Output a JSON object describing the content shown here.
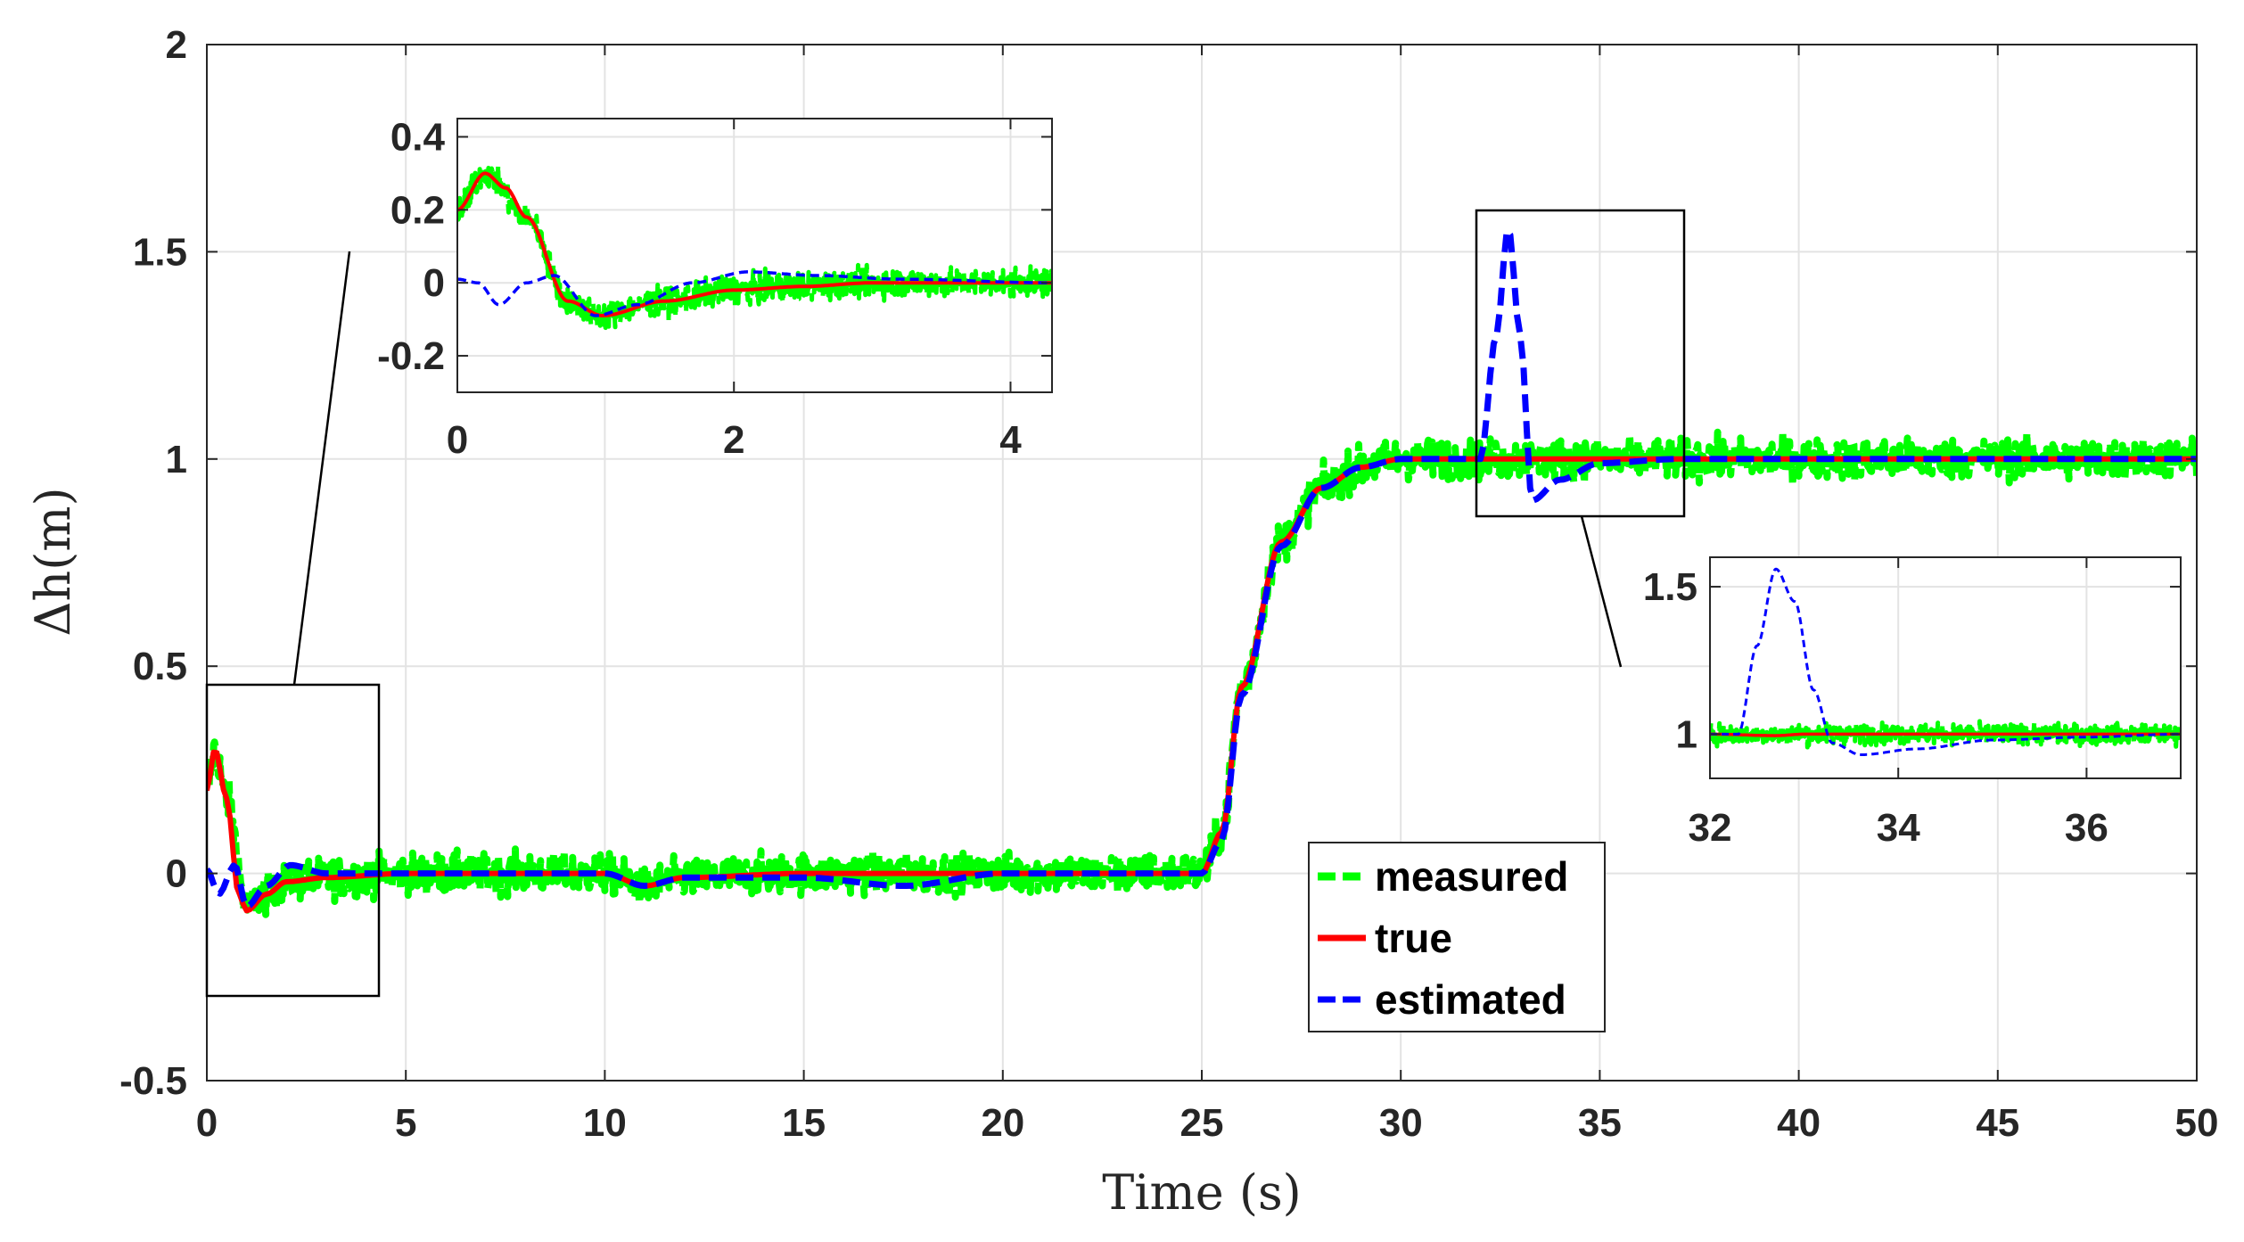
{
  "chart_data": [
    {
      "id": "main",
      "type": "line",
      "xlabel": "Time (s)",
      "ylabel": "Δh(m)",
      "xlim": [
        0,
        50
      ],
      "ylim": [
        -0.5,
        2
      ],
      "xticks": [
        0,
        5,
        10,
        15,
        20,
        25,
        30,
        35,
        40,
        45,
        50
      ],
      "xtick_labels": [
        "0",
        "5",
        "10",
        "15",
        "20",
        "25",
        "30",
        "35",
        "40",
        "45",
        "50"
      ],
      "yticks": [
        -0.5,
        0,
        0.5,
        1,
        1.5,
        2
      ],
      "ytick_labels": [
        "-0.5",
        "0",
        "0.5",
        "1",
        "1.5",
        "2"
      ],
      "grid": true,
      "legend": {
        "placement": "bottom-center-right",
        "entries": [
          "measured",
          "true",
          "estimated"
        ]
      },
      "series": [
        {
          "name": "measured",
          "color": "#00ff00",
          "style": "dashed-noisy",
          "noise_amplitude": 0.1,
          "x": [
            0,
            0.2,
            0.5,
            1.0,
            1.5,
            2,
            3,
            5,
            10,
            11,
            12,
            15,
            20,
            25,
            25.5,
            26,
            27,
            28,
            29,
            30,
            35,
            40,
            45,
            50
          ],
          "values": [
            0.2,
            0.3,
            0.18,
            -0.08,
            -0.05,
            -0.02,
            -0.01,
            0,
            0,
            -0.03,
            -0.01,
            0,
            0,
            0,
            0.1,
            0.45,
            0.8,
            0.93,
            0.98,
            1.0,
            1.0,
            1.0,
            1.0,
            1.0
          ]
        },
        {
          "name": "true",
          "color": "#ff0000",
          "style": "solid",
          "x": [
            0,
            0.2,
            0.5,
            0.8,
            1.0,
            1.5,
            2,
            3,
            5,
            10,
            11,
            12,
            15,
            20,
            25,
            25.5,
            26,
            27,
            28,
            29,
            30,
            35,
            40,
            45,
            50
          ],
          "values": [
            0.2,
            0.3,
            0.18,
            -0.05,
            -0.09,
            -0.05,
            -0.02,
            -0.01,
            0,
            0,
            -0.03,
            -0.01,
            0,
            0,
            0,
            0.1,
            0.45,
            0.8,
            0.93,
            0.98,
            1.0,
            1.0,
            1.0,
            1.0,
            1.0
          ]
        },
        {
          "name": "estimated",
          "color": "#0000ff",
          "style": "dashed",
          "x": [
            0,
            0.3,
            0.7,
            1.0,
            1.5,
            2.1,
            3,
            5,
            10,
            11,
            12,
            15,
            17.5,
            20,
            25,
            25.5,
            26,
            27,
            28,
            29,
            30,
            32,
            32.4,
            32.7,
            33.0,
            33.3,
            34,
            35,
            37,
            40,
            45,
            50
          ],
          "values": [
            0.01,
            -0.05,
            0.02,
            -0.08,
            -0.03,
            0.02,
            0.0,
            0,
            0,
            -0.03,
            -0.01,
            -0.01,
            -0.03,
            0,
            0,
            0.08,
            0.43,
            0.79,
            0.93,
            0.98,
            1.0,
            1.0,
            1.3,
            1.56,
            1.3,
            0.9,
            0.95,
            0.99,
            1.0,
            1.0,
            1.0,
            1.0
          ]
        }
      ],
      "annotations": [
        "zoom box 1: x 0–4.3, y -0.3–0.45",
        "zoom box 2: x 32–37, y 0.85–1.6"
      ]
    },
    {
      "id": "inset1",
      "type": "line",
      "xlim": [
        0,
        4.3
      ],
      "ylim": [
        -0.3,
        0.45
      ],
      "xticks": [
        0,
        2,
        4
      ],
      "xtick_labels": [
        "0",
        "2",
        "4"
      ],
      "yticks": [
        -0.2,
        0,
        0.2,
        0.4
      ],
      "ytick_labels": [
        "-0.2",
        "0",
        "0.2",
        "0.4"
      ],
      "grid": true,
      "series": [
        {
          "name": "measured",
          "color": "#00ff00",
          "noise_amplitude": 0.08,
          "x": [
            0,
            0.2,
            0.5,
            0.8,
            1.0,
            1.5,
            2.0,
            2.5,
            3.0,
            4.3
          ],
          "values": [
            0.2,
            0.3,
            0.18,
            -0.05,
            -0.09,
            -0.05,
            -0.02,
            -0.01,
            0,
            0
          ]
        },
        {
          "name": "true",
          "color": "#ff0000",
          "x": [
            0,
            0.2,
            0.35,
            0.5,
            0.8,
            1.05,
            1.5,
            2.0,
            2.5,
            3.0,
            4.3
          ],
          "values": [
            0.2,
            0.3,
            0.26,
            0.18,
            -0.05,
            -0.09,
            -0.05,
            -0.02,
            -0.01,
            0,
            0
          ]
        },
        {
          "name": "estimated",
          "color": "#0000ff",
          "x": [
            0,
            0.15,
            0.3,
            0.5,
            0.7,
            1.0,
            1.3,
            1.7,
            2.1,
            2.6,
            3.2,
            4.3
          ],
          "values": [
            0.01,
            0.0,
            -0.06,
            0.0,
            0.02,
            -0.09,
            -0.06,
            0.0,
            0.03,
            0.02,
            0.01,
            0.0
          ]
        }
      ]
    },
    {
      "id": "inset2",
      "type": "line",
      "xlim": [
        32,
        37
      ],
      "ylim": [
        0.85,
        1.6
      ],
      "xticks": [
        32,
        34,
        36
      ],
      "xtick_labels": [
        "32",
        "34",
        "36"
      ],
      "yticks": [
        1,
        1.5
      ],
      "ytick_labels": [
        "1",
        "1.5"
      ],
      "grid": true,
      "series": [
        {
          "name": "measured",
          "color": "#00ff00",
          "noise_amplitude": 0.07,
          "x": [
            32,
            37
          ],
          "values": [
            1.0,
            1.0
          ]
        },
        {
          "name": "true",
          "color": "#ff0000",
          "x": [
            32,
            32.7,
            33.0,
            37
          ],
          "values": [
            1.0,
            0.995,
            1.0,
            1.0
          ]
        },
        {
          "name": "estimated",
          "color": "#0000ff",
          "x": [
            32,
            32.3,
            32.5,
            32.7,
            32.9,
            33.1,
            33.3,
            33.6,
            34.2,
            35,
            36,
            37
          ],
          "values": [
            1.0,
            1.0,
            1.3,
            1.56,
            1.45,
            1.15,
            0.97,
            0.93,
            0.95,
            0.98,
            0.99,
            1.0
          ]
        }
      ]
    }
  ]
}
